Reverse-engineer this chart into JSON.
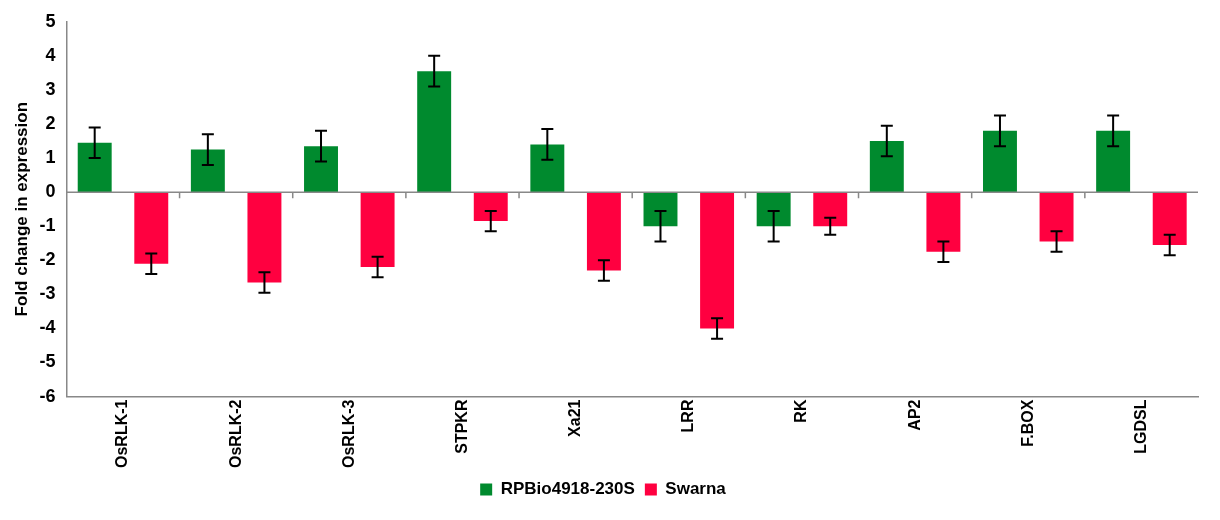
{
  "chart_data": {
    "type": "bar",
    "ylabel": "Fold change in expression",
    "categories": [
      "OsRLK-1",
      "OsRLK-2",
      "OsRLK-3",
      "STPKR",
      "Xa21",
      "LRR",
      "RK",
      "AP2",
      "F.BOX",
      "LGDSL"
    ],
    "series": [
      {
        "name": "RPBio4918-230S",
        "color": "#008a2e",
        "values": [
          1.45,
          1.25,
          1.35,
          3.55,
          1.4,
          -1.0,
          -1.0,
          1.5,
          1.8,
          1.8
        ],
        "errors": [
          0.45,
          0.45,
          0.45,
          0.45,
          0.45,
          0.45,
          0.45,
          0.45,
          0.45,
          0.45
        ]
      },
      {
        "name": "Swarna",
        "color": "#ff0040",
        "values": [
          -2.1,
          -2.65,
          -2.2,
          -0.85,
          -2.3,
          -4.0,
          -1.0,
          -1.75,
          -1.45,
          -1.55
        ],
        "errors": [
          0.3,
          0.3,
          0.3,
          0.3,
          0.3,
          0.3,
          0.25,
          0.3,
          0.3,
          0.3
        ]
      }
    ],
    "ylim": [
      -6,
      5
    ],
    "yticks": [
      -6,
      -5,
      -4,
      -3,
      -2,
      -1,
      0,
      1,
      2,
      3,
      4,
      5
    ],
    "ref_lines": [
      {
        "axis": "y",
        "value": 0,
        "color": "#888888"
      }
    ],
    "legend": "bottom",
    "grid": false
  }
}
